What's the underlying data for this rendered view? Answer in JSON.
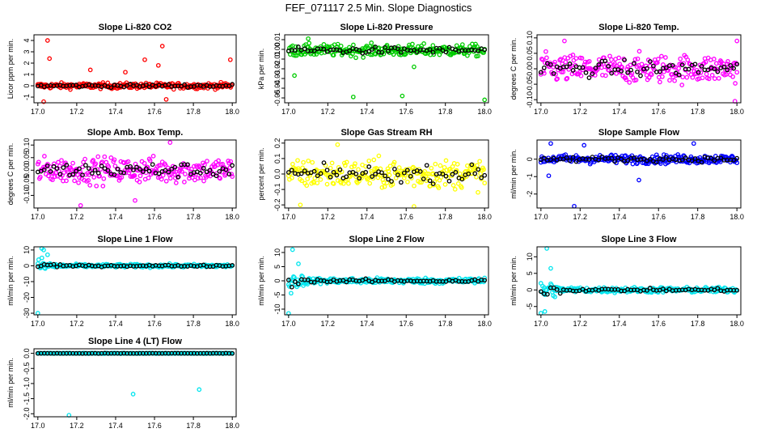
{
  "figure": {
    "title": "FEF_071117  2.5 Min. Slope Diagnostics"
  },
  "colors": {
    "red": "#ff0000",
    "green": "#00cc00",
    "magenta": "#ff00ff",
    "yellow": "#ffff00",
    "blue": "#0000ff",
    "cyan": "#00e5ee",
    "black": "#000000"
  },
  "chart_data": [
    {
      "id": "p1",
      "type": "scatter",
      "title": "Slope Li-820 CO2",
      "ylabel": "Licor ppm per min.",
      "xlim": [
        16.98,
        18.02
      ],
      "ylim": [
        -1.5,
        4.5
      ],
      "xticks": [
        "17.0",
        "17.2",
        "17.4",
        "17.6",
        "17.8",
        "18.0"
      ],
      "yticks": [
        "-1",
        "0",
        "1",
        "2",
        "3",
        "4"
      ],
      "color": "red",
      "center": 0,
      "spread": 0.25,
      "outliers": [
        [
          17.05,
          4.0
        ],
        [
          17.03,
          -1.4
        ],
        [
          17.06,
          2.4
        ],
        [
          17.55,
          2.3
        ],
        [
          17.64,
          3.5
        ],
        [
          17.66,
          -1.2
        ],
        [
          17.62,
          1.8
        ],
        [
          17.27,
          1.4
        ],
        [
          17.99,
          2.3
        ],
        [
          17.45,
          1.2
        ]
      ]
    },
    {
      "id": "p2",
      "type": "scatter",
      "title": "Slope Li-820 Pressure",
      "ylabel": "kPa per min.",
      "xlim": [
        16.98,
        18.02
      ],
      "ylim": [
        -0.055,
        0.015
      ],
      "xticks": [
        "17.0",
        "17.2",
        "17.4",
        "17.6",
        "17.8",
        "18.0"
      ],
      "yticks": [
        "-0.05",
        "-0.04",
        "-0.03",
        "-0.02",
        "-0.01",
        "0.00",
        "0.01"
      ],
      "color": "green",
      "center": -0.001,
      "spread": 0.006,
      "outliers": [
        [
          17.33,
          -0.049
        ],
        [
          17.58,
          -0.048
        ],
        [
          18.0,
          -0.052
        ],
        [
          17.03,
          -0.027
        ],
        [
          17.64,
          -0.018
        ],
        [
          17.1,
          0.011
        ]
      ]
    },
    {
      "id": "p3",
      "type": "scatter",
      "title": "Slope Li-820 Temp.",
      "ylabel": "degrees C per min.",
      "xlim": [
        16.98,
        18.02
      ],
      "ylim": [
        -0.11,
        0.11
      ],
      "xticks": [
        "17.0",
        "17.2",
        "17.4",
        "17.6",
        "17.8",
        "18.0"
      ],
      "yticks": [
        "-0.10",
        "-0.05",
        "0.00",
        "0.05",
        "0.10"
      ],
      "color": "magenta",
      "center": 0,
      "spread": 0.045,
      "outliers": [
        [
          17.12,
          0.09
        ],
        [
          17.99,
          -0.105
        ],
        [
          18.0,
          0.09
        ]
      ]
    },
    {
      "id": "p4",
      "type": "scatter",
      "title": "Slope Amb. Box Temp.",
      "ylabel": "degrees C per min.",
      "xlim": [
        16.98,
        18.02
      ],
      "ylim": [
        -0.15,
        0.12
      ],
      "xticks": [
        "17.0",
        "17.2",
        "17.4",
        "17.6",
        "17.8",
        "18.0"
      ],
      "yticks": [
        "-0.10",
        "-0.05",
        "0.00",
        "0.05",
        "0.10"
      ],
      "color": "magenta",
      "center": 0,
      "spread": 0.05,
      "outliers": [
        [
          17.22,
          -0.14
        ],
        [
          17.68,
          0.11
        ],
        [
          17.5,
          -0.12
        ]
      ]
    },
    {
      "id": "p5",
      "type": "scatter",
      "title": "Slope Gas Stream RH",
      "ylabel": "percent per min.",
      "xlim": [
        16.98,
        18.02
      ],
      "ylim": [
        -0.22,
        0.22
      ],
      "xticks": [
        "17.0",
        "17.2",
        "17.4",
        "17.6",
        "17.8",
        "18.0"
      ],
      "yticks": [
        "-0.2",
        "-0.1",
        "0.0",
        "0.1",
        "0.2"
      ],
      "color": "yellow",
      "center": 0,
      "spread": 0.09,
      "outliers": [
        [
          17.64,
          -0.21
        ],
        [
          17.06,
          -0.2
        ],
        [
          17.25,
          0.19
        ]
      ]
    },
    {
      "id": "p6",
      "type": "scatter",
      "title": "Slope Sample Flow",
      "ylabel": "ml/min per min.",
      "xlim": [
        16.98,
        18.02
      ],
      "ylim": [
        -2.8,
        1.1
      ],
      "xticks": [
        "17.0",
        "17.2",
        "17.4",
        "17.6",
        "17.8",
        "18.0"
      ],
      "yticks": [
        "-2",
        "-1",
        "0"
      ],
      "color": "blue",
      "center": 0,
      "spread": 0.25,
      "outliers": [
        [
          17.17,
          -2.7
        ],
        [
          17.04,
          -0.95
        ],
        [
          17.05,
          0.9
        ],
        [
          17.22,
          0.8
        ],
        [
          17.78,
          0.9
        ],
        [
          17.5,
          -1.2
        ]
      ]
    },
    {
      "id": "p7",
      "type": "scatter",
      "title": "Slope Line 1 Flow",
      "ylabel": "ml/min per min.",
      "xlim": [
        16.98,
        18.02
      ],
      "ylim": [
        -31,
        12
      ],
      "xticks": [
        "17.0",
        "17.2",
        "17.4",
        "17.6",
        "17.8",
        "18.0"
      ],
      "yticks": [
        "-30",
        "-20",
        "-10",
        "0",
        "10"
      ],
      "color": "cyan",
      "center": 0,
      "spread": 1.0,
      "settleAmp": 5,
      "outliers": [
        [
          17.0,
          -30
        ],
        [
          17.02,
          11
        ],
        [
          17.03,
          10
        ],
        [
          17.05,
          7
        ]
      ]
    },
    {
      "id": "p8",
      "type": "scatter",
      "title": "Slope Line 2 Flow",
      "ylabel": "ml/min per min.",
      "xlim": [
        16.98,
        18.02
      ],
      "ylim": [
        -12,
        12
      ],
      "xticks": [
        "17.0",
        "17.2",
        "17.4",
        "17.6",
        "17.8",
        "18.0"
      ],
      "yticks": [
        "-10",
        "-5",
        "0",
        "5",
        "10"
      ],
      "color": "cyan",
      "center": 0,
      "spread": 1.0,
      "settleAmp": 4,
      "outliers": [
        [
          17.0,
          -11.5
        ],
        [
          17.02,
          11
        ],
        [
          17.05,
          6
        ]
      ]
    },
    {
      "id": "p9",
      "type": "scatter",
      "title": "Slope Line 3 Flow",
      "ylabel": "ml/min per min.",
      "xlim": [
        16.98,
        18.02
      ],
      "ylim": [
        -7.5,
        13
      ],
      "xticks": [
        "17.0",
        "17.2",
        "17.4",
        "17.6",
        "17.8",
        "18.0"
      ],
      "yticks": [
        "-5",
        "0",
        "5",
        "10"
      ],
      "color": "cyan",
      "center": 0,
      "spread": 0.8,
      "settleAmp": 4,
      "outliers": [
        [
          17.03,
          12.5
        ],
        [
          17.05,
          6.5
        ],
        [
          17.02,
          -6.5
        ],
        [
          17.0,
          -7
        ]
      ]
    },
    {
      "id": "p10",
      "type": "scatter",
      "title": "Slope Line 4 (LT) Flow",
      "ylabel": "ml/min per min.",
      "xlim": [
        16.98,
        18.02
      ],
      "ylim": [
        -2.1,
        0.15
      ],
      "xticks": [
        "17.0",
        "17.2",
        "17.4",
        "17.6",
        "17.8",
        "18.0"
      ],
      "yticks": [
        "-2.0",
        "-1.5",
        "-1.0",
        "-0.5",
        "0.0"
      ],
      "color": "cyan",
      "center": 0,
      "spread": 0.01,
      "outliers": [
        [
          17.16,
          -2.05
        ],
        [
          17.49,
          -1.35
        ],
        [
          17.83,
          -1.2
        ]
      ]
    }
  ]
}
